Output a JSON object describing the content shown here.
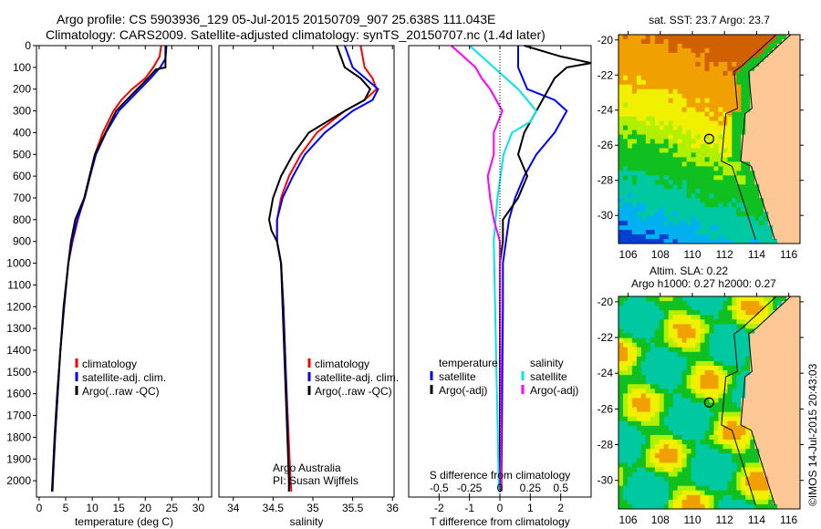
{
  "header": {
    "line1": "Argo profile: CS 5903936_129 05-Jul-2015 20150709_907 25.638S 111.043E",
    "line2": "Climatology: CARS2009. Satellite-adjusted climatology: synTS_20150707.nc (1.4d later)"
  },
  "stamp": "©IMOS 14-Jul-2015 20:43:03",
  "colors": {
    "clim": "#ff0000",
    "sat": "#0000ff",
    "argo": "#000000",
    "sal_sat": "#00e5ee",
    "sal_argo": "#ff00ff"
  },
  "chart_data": [
    {
      "type": "line",
      "id": "temperature",
      "xlabel": "temperature (deg C)",
      "xlim": [
        -0.5,
        32.5
      ],
      "xticks": [
        0,
        5,
        10,
        15,
        20,
        25,
        30
      ],
      "ylim": [
        0,
        2075
      ],
      "yticks": [
        0,
        100,
        200,
        300,
        400,
        500,
        600,
        700,
        800,
        900,
        1000,
        1100,
        1200,
        1300,
        1400,
        1500,
        1600,
        1700,
        1800,
        1900,
        2000
      ],
      "legend": [
        "climatology",
        "satellite-adj. clim.",
        "Argo(..raw -QC)"
      ],
      "series": [
        {
          "name": "climatology",
          "color": "clim",
          "depth": [
            0,
            50,
            100,
            150,
            200,
            250,
            300,
            400,
            500,
            600,
            700,
            800,
            900,
            1000,
            1200,
            1400,
            1600,
            1800,
            2000,
            2050
          ],
          "values": [
            23,
            22.7,
            21.5,
            20,
            17.5,
            15.5,
            14,
            12,
            10.5,
            9.5,
            8.5,
            7.3,
            6.3,
            5.5,
            4.7,
            4,
            3.5,
            3,
            2.6,
            2.5
          ]
        },
        {
          "name": "satellite-adj. clim.",
          "color": "sat",
          "depth": [
            0,
            60,
            100,
            150,
            200,
            300,
            400,
            500,
            600,
            700,
            800,
            900,
            1000,
            1200,
            1400,
            1600,
            1800,
            2000,
            2050
          ],
          "values": [
            24,
            23.8,
            22.8,
            21,
            19,
            15,
            12.6,
            10.7,
            9.6,
            8.6,
            7.2,
            6.2,
            5.5,
            4.7,
            4,
            3.5,
            3,
            2.6,
            2.5
          ]
        },
        {
          "name": "Argo(..raw -QC)",
          "color": "argo",
          "depth": [
            0,
            100,
            110,
            150,
            200,
            250,
            300,
            400,
            500,
            600,
            700,
            800,
            900,
            1000,
            1200,
            1400,
            1600,
            1800,
            2000,
            2050
          ],
          "values": [
            23.8,
            23.8,
            22,
            20.5,
            18.5,
            16.5,
            14.5,
            12.5,
            10.5,
            9.5,
            8.5,
            6.8,
            6,
            5.5,
            4.6,
            4,
            3.4,
            2.9,
            2.5,
            2.4
          ]
        }
      ]
    },
    {
      "type": "line",
      "id": "salinity",
      "xlabel": "salinity",
      "xlim": [
        33.82,
        36.02
      ],
      "xticks": [
        34,
        34.5,
        35,
        35.5,
        36
      ],
      "ylim": [
        0,
        2075
      ],
      "legend": [
        "climatology",
        "satellite-adj. clim.",
        "Argo(..raw -QC)"
      ],
      "annotation": [
        "Argo Australia",
        "PI: Susan Wijffels"
      ],
      "series": [
        {
          "name": "climatology",
          "color": "clim",
          "depth": [
            0,
            100,
            150,
            200,
            250,
            300,
            400,
            500,
            600,
            700,
            800,
            900,
            1000,
            1200,
            1500,
            2000,
            2050
          ],
          "values": [
            35.6,
            35.65,
            35.75,
            35.8,
            35.65,
            35.4,
            35.05,
            34.85,
            34.7,
            34.6,
            34.55,
            34.55,
            34.6,
            34.63,
            34.66,
            34.72,
            34.73
          ]
        },
        {
          "name": "satellite-adj. clim.",
          "color": "sat",
          "depth": [
            0,
            100,
            200,
            250,
            300,
            400,
            500,
            600,
            700,
            800,
            900,
            1000,
            1200,
            1500,
            2000,
            2050
          ],
          "values": [
            35.4,
            35.5,
            35.82,
            35.75,
            35.5,
            35.15,
            34.9,
            34.75,
            34.62,
            34.55,
            34.55,
            34.6,
            34.63,
            34.66,
            34.7,
            34.7
          ]
        },
        {
          "name": "Argo(..raw -QC)",
          "color": "argo",
          "depth": [
            0,
            100,
            150,
            200,
            250,
            300,
            400,
            500,
            600,
            700,
            800,
            850,
            900,
            1000,
            1200,
            1500,
            2000,
            2050
          ],
          "values": [
            35.3,
            35.4,
            35.6,
            35.72,
            35.65,
            35.4,
            34.95,
            34.75,
            34.6,
            34.5,
            34.45,
            34.48,
            34.55,
            34.6,
            34.62,
            34.65,
            34.7,
            34.7
          ]
        }
      ]
    },
    {
      "type": "line",
      "id": "difference",
      "xlabel": "T difference from climatology",
      "xlabel2": "S difference from climatology",
      "xlim": [
        -3,
        3
      ],
      "xticks": [
        -2,
        -1,
        0,
        1,
        2
      ],
      "xlim2": [
        -0.75,
        0.75
      ],
      "xticks2": [
        -0.5,
        -0.25,
        0,
        0.25,
        0.5
      ],
      "xticklabels2": [
        "-0.5",
        "-0.25",
        "0",
        "0.25",
        "0.5"
      ],
      "ylim": [
        0,
        2075
      ],
      "legend_t_title": "temperature",
      "legend_s_title": "salinity",
      "legend": [
        "satellite",
        "Argo(-adj)",
        "satellite",
        "Argo(-adj)"
      ],
      "series": [
        {
          "name": "T satellite",
          "color": "sat",
          "axis": "T",
          "depth": [
            0,
            100,
            200,
            250,
            300,
            400,
            500,
            600,
            700,
            800,
            1000,
            1200,
            2000,
            2050
          ],
          "values": [
            0.6,
            0.6,
            0.9,
            1.8,
            2.2,
            1.8,
            1.2,
            0.8,
            0.5,
            0.3,
            0.1,
            0.1,
            0.05,
            0.05
          ]
        },
        {
          "name": "T Argo(-adj)",
          "color": "argo",
          "axis": "T",
          "depth": [
            0,
            50,
            80,
            100,
            150,
            200,
            300,
            400,
            500,
            600,
            700,
            800,
            900,
            1000,
            2000,
            2050
          ],
          "values": [
            0.8,
            2,
            3,
            2.2,
            1.8,
            1.6,
            1.2,
            0.8,
            0.6,
            0.9,
            0.6,
            0.1,
            0.1,
            0,
            0,
            0
          ]
        },
        {
          "name": "S satellite",
          "color": "sal_sat",
          "axis": "S",
          "depth": [
            0,
            50,
            100,
            200,
            300,
            350,
            400,
            500,
            700,
            900,
            2000,
            2050
          ],
          "values": [
            -0.25,
            -0.15,
            -0.05,
            0.15,
            0.3,
            0.25,
            0.1,
            0.03,
            -0.02,
            -0.05,
            -0.01,
            -0.01
          ]
        },
        {
          "name": "S Argo(-adj)",
          "color": "sal_argo",
          "axis": "S",
          "depth": [
            0,
            50,
            100,
            150,
            200,
            300,
            400,
            500,
            600,
            700,
            800,
            900,
            2000,
            2050
          ],
          "values": [
            -0.4,
            -0.3,
            -0.2,
            -0.15,
            -0.08,
            0.02,
            -0.05,
            -0.05,
            -0.1,
            -0.08,
            -0.05,
            0,
            0.01,
            0.01
          ]
        }
      ]
    },
    {
      "type": "heatmap",
      "id": "sst-map",
      "title": "sat. SST: 23.7 Argo: 23.7",
      "xlim": [
        105.4,
        116.7
      ],
      "ylim": [
        -31.6,
        -19.7
      ],
      "xticks": [
        106,
        108,
        110,
        112,
        114,
        116
      ],
      "yticks": [
        -20,
        -22,
        -24,
        -26,
        -28,
        -30
      ],
      "marker": {
        "lon": 111.043,
        "lat": -25.638
      }
    },
    {
      "type": "heatmap",
      "id": "sla-map",
      "title": "Altim. SLA: 0.22",
      "subtitle": "Argo h1000: 0.27 h2000: 0.27",
      "xlim": [
        105.4,
        116.7
      ],
      "ylim": [
        -31.6,
        -19.7
      ],
      "xticks": [
        106,
        108,
        110,
        112,
        114,
        116
      ],
      "yticks": [
        -20,
        -22,
        -24,
        -26,
        -28,
        -30
      ],
      "marker": {
        "lon": 111.043,
        "lat": -25.638
      }
    }
  ]
}
